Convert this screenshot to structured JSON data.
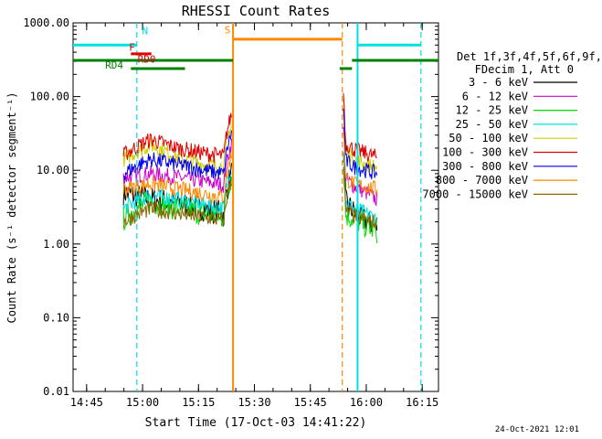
{
  "chart_data": {
    "type": "line",
    "title": "RHESSI Count Rates",
    "xlabel": "Start Time (17-Oct-03 14:41:22)",
    "ylabel": "Count Rate (s⁻¹ detector segment⁻¹)",
    "yscale": "log",
    "ylim": [
      0.01,
      1000
    ],
    "xlim_minutes": [
      0,
      98
    ],
    "x_ticks": [
      "14:45",
      "15:00",
      "15:15",
      "15:30",
      "15:45",
      "16:00",
      "16:15"
    ],
    "y_ticks": [
      "1000.00",
      "100.00",
      "10.00",
      "1.00",
      "0.10",
      "0.01"
    ],
    "legend_header": [
      "Det 1f,3f,4f,5f,6f,9f,",
      "FDecim 1, Att 0"
    ],
    "series": [
      {
        "name": "3 - 6 keV",
        "color": "#000000",
        "seg1": [
          5.0,
          4.0,
          3.6,
          3.0,
          2.4
        ],
        "seg2": [
          4.0,
          2.6,
          2.0,
          1.7
        ]
      },
      {
        "name": "6 - 12 keV",
        "color": "#cc00cc",
        "seg1": [
          8.0,
          9.0,
          8.0,
          7.0,
          6.0
        ],
        "seg2": [
          8.0,
          6.0,
          5.0,
          4.0
        ]
      },
      {
        "name": "12 - 25 keV",
        "color": "#00dd00",
        "seg1": [
          2.2,
          3.8,
          3.0,
          2.6,
          2.2
        ],
        "seg2": [
          2.6,
          2.2,
          1.8,
          1.5
        ]
      },
      {
        "name": "25 - 50 keV",
        "color": "#00e0e0",
        "seg1": [
          3.0,
          4.6,
          4.0,
          3.4,
          3.0
        ],
        "seg2": [
          3.8,
          3.0,
          2.6,
          2.2
        ]
      },
      {
        "name": "50 - 100 keV",
        "color": "#cccc00",
        "seg1": [
          14.0,
          22.0,
          15.0,
          12.0,
          11.0
        ],
        "seg2": [
          20.0,
          14.0,
          12.0,
          11.0
        ]
      },
      {
        "name": "100 - 300 keV",
        "color": "#e00000",
        "seg1": [
          16.0,
          26.0,
          20.0,
          17.0,
          15.0
        ],
        "seg2": [
          24.0,
          19.0,
          17.0,
          15.0
        ]
      },
      {
        "name": "300 - 800 keV",
        "color": "#0000ee",
        "seg1": [
          9.0,
          14.0,
          12.0,
          10.0,
          8.5
        ],
        "seg2": [
          14.0,
          11.0,
          10.0,
          9.0
        ]
      },
      {
        "name": "800 - 7000 keV",
        "color": "#ff8800",
        "seg1": [
          5.5,
          6.6,
          5.6,
          4.8,
          4.2
        ],
        "seg2": [
          8.0,
          6.5,
          6.0,
          5.5
        ]
      },
      {
        "name": "7000 - 15000 keV",
        "color": "#886600",
        "seg1": [
          2.0,
          3.0,
          2.6,
          2.3,
          2.0
        ],
        "seg2": [
          2.8,
          2.4,
          2.1,
          1.9
        ]
      }
    ],
    "segments_minutes": {
      "seg1": [
        13.5,
        42.5
      ],
      "seg2": [
        72.5,
        81.5
      ]
    },
    "annotations": [
      {
        "text": "N",
        "color": "#00e0e0"
      },
      {
        "text": "F",
        "color": "#e00000"
      },
      {
        "text": "RD0",
        "color": "#e00000"
      },
      {
        "text": "RD4",
        "color": "#008000"
      },
      {
        "text": "S",
        "color": "#ff8800"
      }
    ]
  },
  "footer": {
    "date": "24-Oct-2021 12:01"
  }
}
